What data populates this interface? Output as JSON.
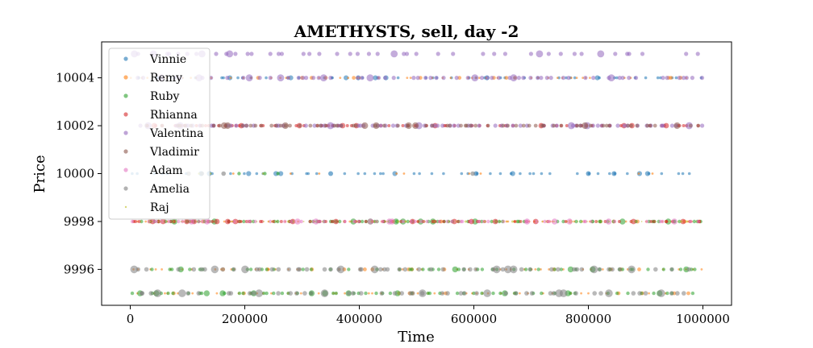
{
  "chart_data": {
    "type": "scatter",
    "title": "AMETHYSTS, sell, day -2",
    "xlabel": "Time",
    "ylabel": "Price",
    "xlim": [
      -50000,
      1050000
    ],
    "ylim": [
      9994.5,
      10005.5
    ],
    "x_ticks": [
      0,
      200000,
      400000,
      600000,
      800000,
      1000000
    ],
    "x_tick_labels": [
      "0",
      "200000",
      "400000",
      "600000",
      "800000",
      "1000000"
    ],
    "y_ticks": [
      9996,
      9998,
      10000,
      10002,
      10004
    ],
    "y_tick_labels": [
      "9996",
      "9998",
      "10000",
      "10002",
      "10004"
    ],
    "grid": false,
    "legend_position": "top-left",
    "series": [
      {
        "name": "Vinnie",
        "color": "#1f77b4",
        "levels": [
          10004,
          10000
        ],
        "points": [
          [
            604000,
            10000
          ],
          [
            800000,
            10000
          ],
          [
            845000,
            10000
          ],
          [
            350000,
            10000
          ]
        ]
      },
      {
        "name": "Remy",
        "color": "#ff7f0e",
        "levels": [
          10004,
          9998,
          9996,
          9995
        ],
        "points": [
          [
            180000,
            10000
          ],
          [
            280000,
            10000
          ],
          [
            330000,
            10000
          ],
          [
            465000,
            10000
          ],
          [
            478000,
            10000
          ],
          [
            592000,
            10000
          ],
          [
            612000,
            10000
          ],
          [
            888000,
            10000
          ],
          [
            912000,
            10000
          ]
        ]
      },
      {
        "name": "Ruby",
        "color": "#2ca02c",
        "levels": [
          9998,
          9996,
          9995
        ],
        "points": [
          [
            190000,
            10000
          ],
          [
            235000,
            10000
          ],
          [
            258000,
            10000
          ]
        ]
      },
      {
        "name": "Rhianna",
        "color": "#d62728",
        "levels": [
          10002,
          9998
        ],
        "points": []
      },
      {
        "name": "Valentina",
        "color": "#9467bd",
        "levels": [
          10005,
          10004,
          10002
        ],
        "points": []
      },
      {
        "name": "Vladimir",
        "color": "#8c564b",
        "levels": [
          10002
        ],
        "points": []
      },
      {
        "name": "Adam",
        "color": "#e377c2",
        "levels": [
          9998
        ],
        "points": []
      },
      {
        "name": "Amelia",
        "color": "#7f7f7f",
        "levels": [
          9996,
          9995
        ],
        "points": [
          [
            102000,
            10000
          ],
          [
            125000,
            10000
          ],
          [
            163000,
            10000
          ],
          [
            598000,
            10000
          ]
        ]
      },
      {
        "name": "Raj",
        "color": "#bcbd22",
        "levels": [
          9998
        ],
        "points": [
          [
            120000,
            10000
          ],
          [
            140000,
            10000
          ],
          [
            232000,
            10000
          ]
        ]
      }
    ]
  }
}
